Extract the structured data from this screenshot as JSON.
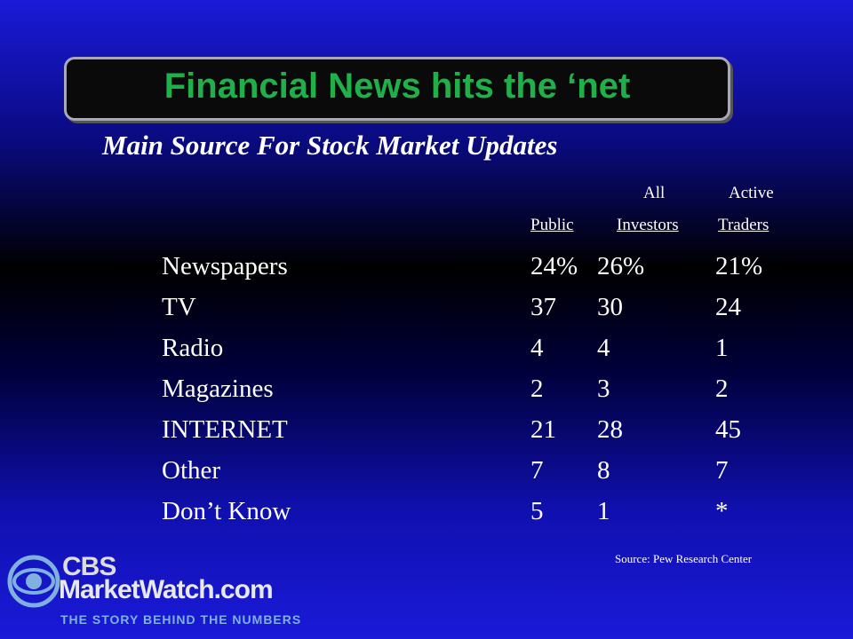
{
  "slide": {
    "title": "Financial News hits the ‘net",
    "subtitle": "Main Source For Stock Market Updates",
    "table": {
      "header": {
        "line1": [
          "All",
          "Active"
        ],
        "line2": [
          "Public",
          "Investors",
          "Traders"
        ]
      },
      "rows": [
        [
          "Newspapers",
          "24%",
          "26%",
          "21%"
        ],
        [
          "TV",
          "37",
          "30",
          "24"
        ],
        [
          "Radio",
          "4",
          "4",
          "1"
        ],
        [
          "Magazines",
          "2",
          "3",
          "2"
        ],
        [
          "INTERNET",
          "21",
          "28",
          "45"
        ],
        [
          "Other",
          "7",
          "8",
          "7"
        ],
        [
          "Don’t Know",
          "5",
          "1",
          "*"
        ]
      ]
    },
    "source": "Source: Pew Research Center",
    "logo": {
      "brand": "CBS",
      "name": "MarketWatch.com",
      "tagline": "THE STORY BEHIND THE NUMBERS"
    }
  }
}
